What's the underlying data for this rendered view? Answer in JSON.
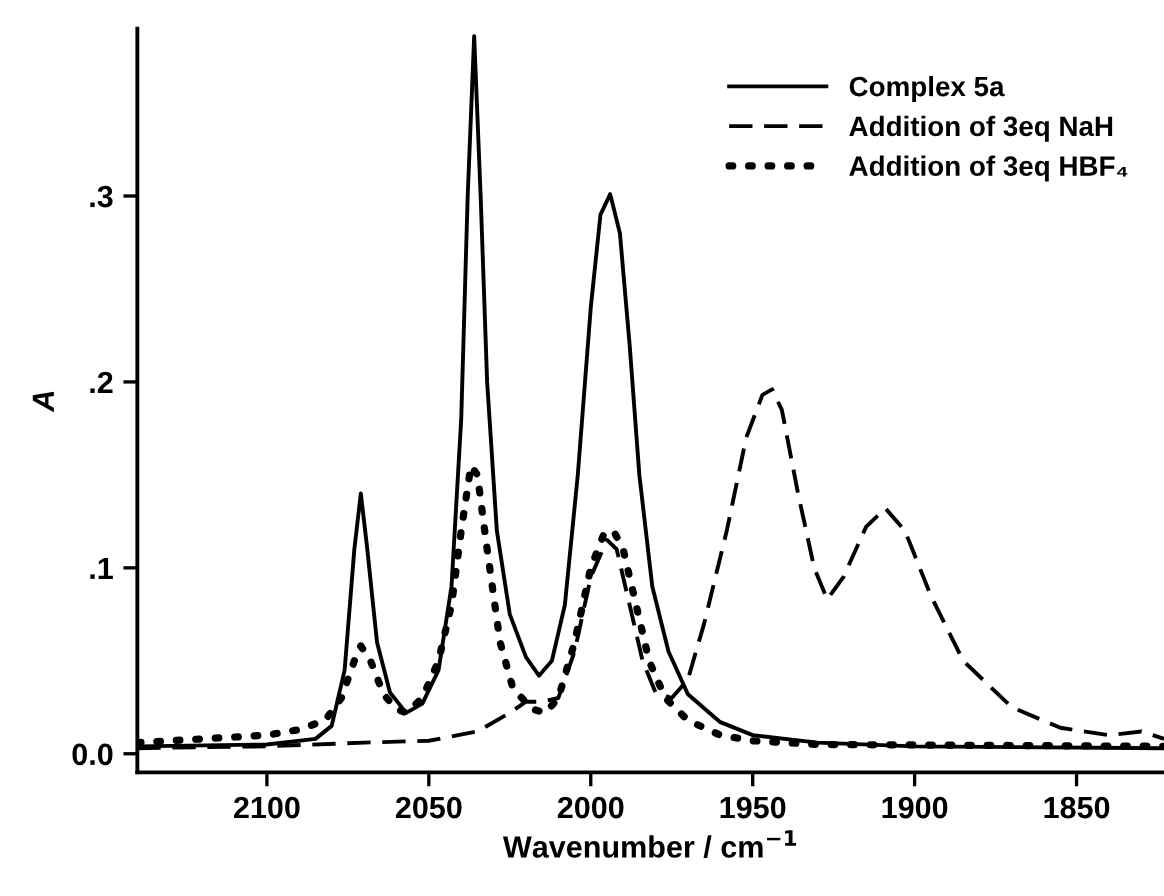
{
  "chart_data": {
    "type": "line",
    "xlabel": "Wavenumber / cm$^{−1}$",
    "ylabel": "A",
    "xlim": [
      2140,
      1823
    ],
    "ylim": [
      -0.01,
      0.39
    ],
    "xticks": [
      2100,
      2050,
      2000,
      1950,
      1900,
      1850
    ],
    "yticks": [
      {
        "value": 0,
        "label": "0.0"
      },
      {
        "value": 0.1,
        "label": ".1"
      },
      {
        "value": 0.2,
        "label": ".2"
      },
      {
        "value": 0.3,
        "label": ".3"
      }
    ],
    "grid": false,
    "legend": "top right",
    "marker": "none",
    "series": [
      {
        "name": "Complex 5a",
        "color": "#000000",
        "line_style": "solid",
        "x": [
          2140,
          2100,
          2085,
          2080,
          2076,
          2073,
          2071,
          2069,
          2066,
          2062,
          2057,
          2052,
          2047,
          2043,
          2040,
          2038,
          2036,
          2034,
          2032,
          2029,
          2025,
          2020,
          2016,
          2012,
          2008,
          2004,
          2000,
          1997,
          1994,
          1991,
          1988,
          1985,
          1981,
          1976,
          1970,
          1960,
          1950,
          1930,
          1900,
          1823
        ],
        "values": [
          0.004,
          0.005,
          0.008,
          0.015,
          0.045,
          0.11,
          0.14,
          0.11,
          0.06,
          0.033,
          0.022,
          0.027,
          0.045,
          0.09,
          0.18,
          0.3,
          0.386,
          0.3,
          0.2,
          0.12,
          0.075,
          0.052,
          0.042,
          0.05,
          0.08,
          0.15,
          0.24,
          0.29,
          0.301,
          0.28,
          0.22,
          0.15,
          0.09,
          0.055,
          0.032,
          0.017,
          0.01,
          0.006,
          0.004,
          0.003
        ]
      },
      {
        "name": "Addition of 3eq NaH",
        "color": "#000000",
        "line_style": "dashed",
        "x": [
          2140,
          2100,
          2070,
          2050,
          2035,
          2025,
          2020,
          2015,
          2010,
          2005,
          2000,
          1995,
          1992,
          1988,
          1984,
          1980,
          1975,
          1970,
          1965,
          1958,
          1952,
          1947,
          1944,
          1941,
          1936,
          1931,
          1927,
          1922,
          1915,
          1909,
          1903,
          1895,
          1885,
          1870,
          1855,
          1840,
          1830,
          1823
        ],
        "values": [
          0.003,
          0.004,
          0.006,
          0.007,
          0.012,
          0.022,
          0.028,
          0.028,
          0.03,
          0.055,
          0.095,
          0.115,
          0.11,
          0.08,
          0.05,
          0.033,
          0.03,
          0.04,
          0.07,
          0.12,
          0.17,
          0.193,
          0.196,
          0.185,
          0.14,
          0.1,
          0.083,
          0.095,
          0.122,
          0.132,
          0.12,
          0.085,
          0.05,
          0.025,
          0.014,
          0.01,
          0.012,
          0.008
        ]
      },
      {
        "name": "Addition of 3eq HBF₄",
        "color": "#000000",
        "line_style": "dotted",
        "x": [
          2140,
          2120,
          2100,
          2090,
          2082,
          2077,
          2073,
          2071,
          2068,
          2064,
          2060,
          2057,
          2052,
          2047,
          2043,
          2040,
          2037,
          2035,
          2032,
          2028,
          2024,
          2018,
          2014,
          2010,
          2005,
          2000,
          1996,
          1993,
          1990,
          1986,
          1982,
          1977,
          1970,
          1960,
          1950,
          1930,
          1823
        ],
        "values": [
          0.006,
          0.008,
          0.01,
          0.013,
          0.018,
          0.03,
          0.05,
          0.058,
          0.05,
          0.032,
          0.024,
          0.022,
          0.03,
          0.05,
          0.08,
          0.12,
          0.155,
          0.15,
          0.11,
          0.06,
          0.035,
          0.024,
          0.022,
          0.03,
          0.06,
          0.1,
          0.118,
          0.12,
          0.11,
          0.08,
          0.05,
          0.03,
          0.018,
          0.01,
          0.007,
          0.005,
          0.004
        ]
      }
    ]
  }
}
